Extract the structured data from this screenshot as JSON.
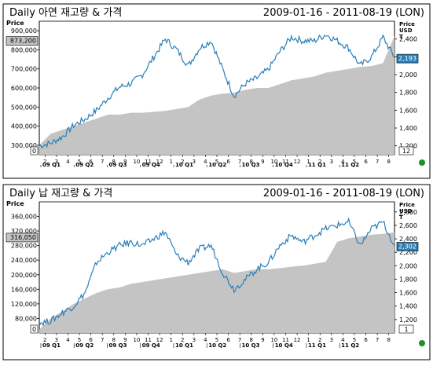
{
  "panels": [
    {
      "title": "Daily 아연 재고량 & 가격",
      "date_range": "2009-01-16 - 2011-08-19 (LON)",
      "left_axis_label": "Price",
      "right_axis_label": [
        "Price",
        "USD",
        "T"
      ],
      "left_tick_labels": [
        "900,000",
        "800,000",
        "700,000",
        "600,000",
        "500,000",
        "400,000",
        "300,000"
      ],
      "right_tick_labels": [
        "2,400",
        "2,200",
        "2,000",
        "1,800",
        "1,600",
        "1,400",
        "1,200"
      ],
      "left_current_label": "873,200",
      "right_current_label": "2,193",
      "left_bottom_label": "0",
      "right_bottom_label": "12",
      "month_ticks": [
        "2",
        "3",
        "4",
        "5",
        "6",
        "7",
        "8",
        "9",
        "10",
        "11",
        "12",
        "1",
        "2",
        "3",
        "4",
        "5",
        "6",
        "7",
        "8",
        "9",
        "10",
        "11",
        "12",
        "1",
        "2",
        "3",
        "4",
        "5",
        "6",
        "7",
        "8"
      ],
      "quarter_labels": [
        "09 Q1",
        "09 Q2",
        "09 Q3",
        "09 Q4",
        "10 Q1",
        "10 Q2",
        "10 Q3",
        "10 Q4",
        "11 Q1",
        "11 Q2"
      ]
    },
    {
      "title": "Daily 납 재고량 & 가격",
      "date_range": "2009-01-16 - 2011-08-19 (LON)",
      "left_axis_label": "Price",
      "right_axis_label": [
        "Price",
        "USD",
        "T"
      ],
      "left_tick_labels": [
        "360,000",
        "320,000",
        "280,000",
        "240,000",
        "200,000",
        "160,000",
        "120,000",
        "80,000"
      ],
      "right_tick_labels": [
        "2,800",
        "2,600",
        "2,400",
        "2,200",
        "2,000",
        "1,800",
        "1,600",
        "1,400",
        "1,200"
      ],
      "left_current_label": "316,050",
      "right_current_label": "2,302",
      "left_bottom_label": "0",
      "right_bottom_label": "1",
      "month_ticks": [
        "2",
        "3",
        "4",
        "5",
        "6",
        "7",
        "8",
        "9",
        "10",
        "11",
        "12",
        "1",
        "2",
        "3",
        "4",
        "5",
        "6",
        "7",
        "8",
        "9",
        "10",
        "11",
        "12",
        "1",
        "2",
        "3",
        "4",
        "5",
        "6",
        "7",
        "8"
      ],
      "quarter_labels": [
        "09 Q1",
        "09 Q2",
        "09 Q3",
        "09 Q4",
        "10 Q1",
        "10 Q2",
        "10 Q3",
        "10 Q4",
        "11 Q1",
        "11 Q2"
      ]
    }
  ],
  "chart_data": [
    {
      "type": "area",
      "title": "Daily 아연 재고량 & 가격",
      "subtitle": "2009-01-16 - 2011-08-19 (LON)",
      "x": [
        "2009-01",
        "2009-02",
        "2009-03",
        "2009-04",
        "2009-05",
        "2009-06",
        "2009-07",
        "2009-08",
        "2009-09",
        "2009-10",
        "2009-11",
        "2009-12",
        "2010-01",
        "2010-02",
        "2010-03",
        "2010-04",
        "2010-05",
        "2010-06",
        "2010-07",
        "2010-08",
        "2010-09",
        "2010-10",
        "2010-11",
        "2010-12",
        "2011-01",
        "2011-02",
        "2011-03",
        "2011-04",
        "2011-05",
        "2011-06",
        "2011-07",
        "2011-08"
      ],
      "series": [
        {
          "axis": "left",
          "kind": "area",
          "color": "#c4c4c4",
          "values": [
            300000,
            360000,
            380000,
            400000,
            420000,
            440000,
            460000,
            460000,
            470000,
            470000,
            475000,
            480000,
            490000,
            500000,
            540000,
            560000,
            570000,
            575000,
            590000,
            600000,
            600000,
            620000,
            640000,
            650000,
            660000,
            680000,
            690000,
            700000,
            710000,
            715000,
            730000,
            873200
          ]
        },
        {
          "axis": "right",
          "kind": "line",
          "color": "#2a7fb8",
          "values": [
            1200,
            1230,
            1300,
            1430,
            1500,
            1600,
            1740,
            1860,
            1900,
            2000,
            2200,
            2400,
            2280,
            2100,
            2300,
            2380,
            2060,
            1760,
            1900,
            1960,
            2060,
            2260,
            2420,
            2380,
            2380,
            2450,
            2380,
            2300,
            2100,
            2200,
            2420,
            2193
          ]
        }
      ],
      "ylim_left": [
        250000,
        950000
      ],
      "ylim_right": [
        1100,
        2600
      ]
    },
    {
      "type": "area",
      "title": "Daily 납 재고량 & 가격",
      "subtitle": "2009-01-16 - 2011-08-19 (LON)",
      "x": [
        "2009-01",
        "2009-02",
        "2009-03",
        "2009-04",
        "2009-05",
        "2009-06",
        "2009-07",
        "2009-08",
        "2009-09",
        "2009-10",
        "2009-11",
        "2009-12",
        "2010-01",
        "2010-02",
        "2010-03",
        "2010-04",
        "2010-05",
        "2010-06",
        "2010-07",
        "2010-08",
        "2010-09",
        "2010-10",
        "2010-11",
        "2010-12",
        "2011-01",
        "2011-02",
        "2011-03",
        "2011-04",
        "2011-05",
        "2011-06",
        "2011-07",
        "2011-08"
      ],
      "series": [
        {
          "axis": "left",
          "kind": "area",
          "color": "#c4c4c4",
          "values": [
            50000,
            80000,
            100000,
            120000,
            135000,
            150000,
            160000,
            165000,
            175000,
            180000,
            185000,
            190000,
            195000,
            200000,
            205000,
            210000,
            215000,
            205000,
            210000,
            215000,
            215000,
            218000,
            222000,
            225000,
            230000,
            235000,
            290000,
            300000,
            305000,
            310000,
            312000,
            316050
          ]
        },
        {
          "axis": "right",
          "kind": "line",
          "color": "#2a7fb8",
          "values": [
            1150,
            1180,
            1300,
            1400,
            1600,
            2050,
            2200,
            2300,
            2350,
            2300,
            2400,
            2500,
            2150,
            2050,
            2250,
            2300,
            1900,
            1650,
            1800,
            1950,
            2050,
            2300,
            2450,
            2350,
            2450,
            2550,
            2600,
            2650,
            2300,
            2550,
            2650,
            2302
          ]
        }
      ],
      "ylim_left": [
        40000,
        400000
      ],
      "ylim_right": [
        1000,
        2950
      ]
    }
  ]
}
